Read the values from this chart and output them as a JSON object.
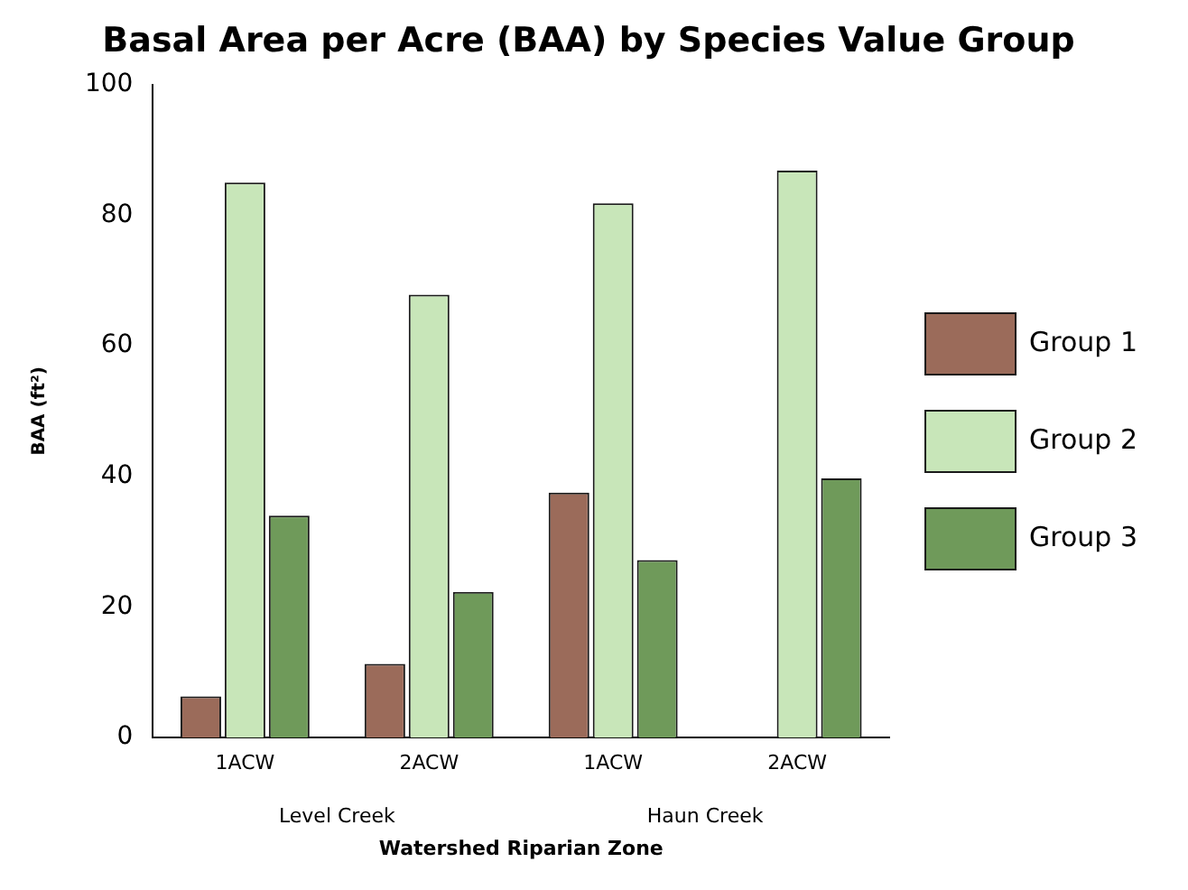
{
  "chart_data": {
    "type": "bar",
    "title": "Basal Area per Acre (BAA) by Species Value Group",
    "xlabel": "Watershed Riparian Zone",
    "ylabel": "BAA (ft²)",
    "categories": [
      "1ACW",
      "2ACW",
      "1ACW",
      "2ACW"
    ],
    "annotations": [
      "Level Creek",
      "Haun Creek"
    ],
    "series": [
      {
        "name": "Group 1",
        "color": "#9b6b5a",
        "values": [
          6.3,
          11.3,
          37.5,
          0
        ]
      },
      {
        "name": "Group 2",
        "color": "#c8e6b9",
        "values": [
          85,
          67.8,
          81.8,
          86.8
        ]
      },
      {
        "name": "Group 3",
        "color": "#6f9a5a",
        "values": [
          34,
          22.3,
          27.2,
          39.7
        ]
      }
    ],
    "ylim": [
      0,
      100
    ],
    "yticks": [
      0,
      20,
      40,
      60,
      80,
      100
    ],
    "grid": false,
    "legend": "right"
  }
}
